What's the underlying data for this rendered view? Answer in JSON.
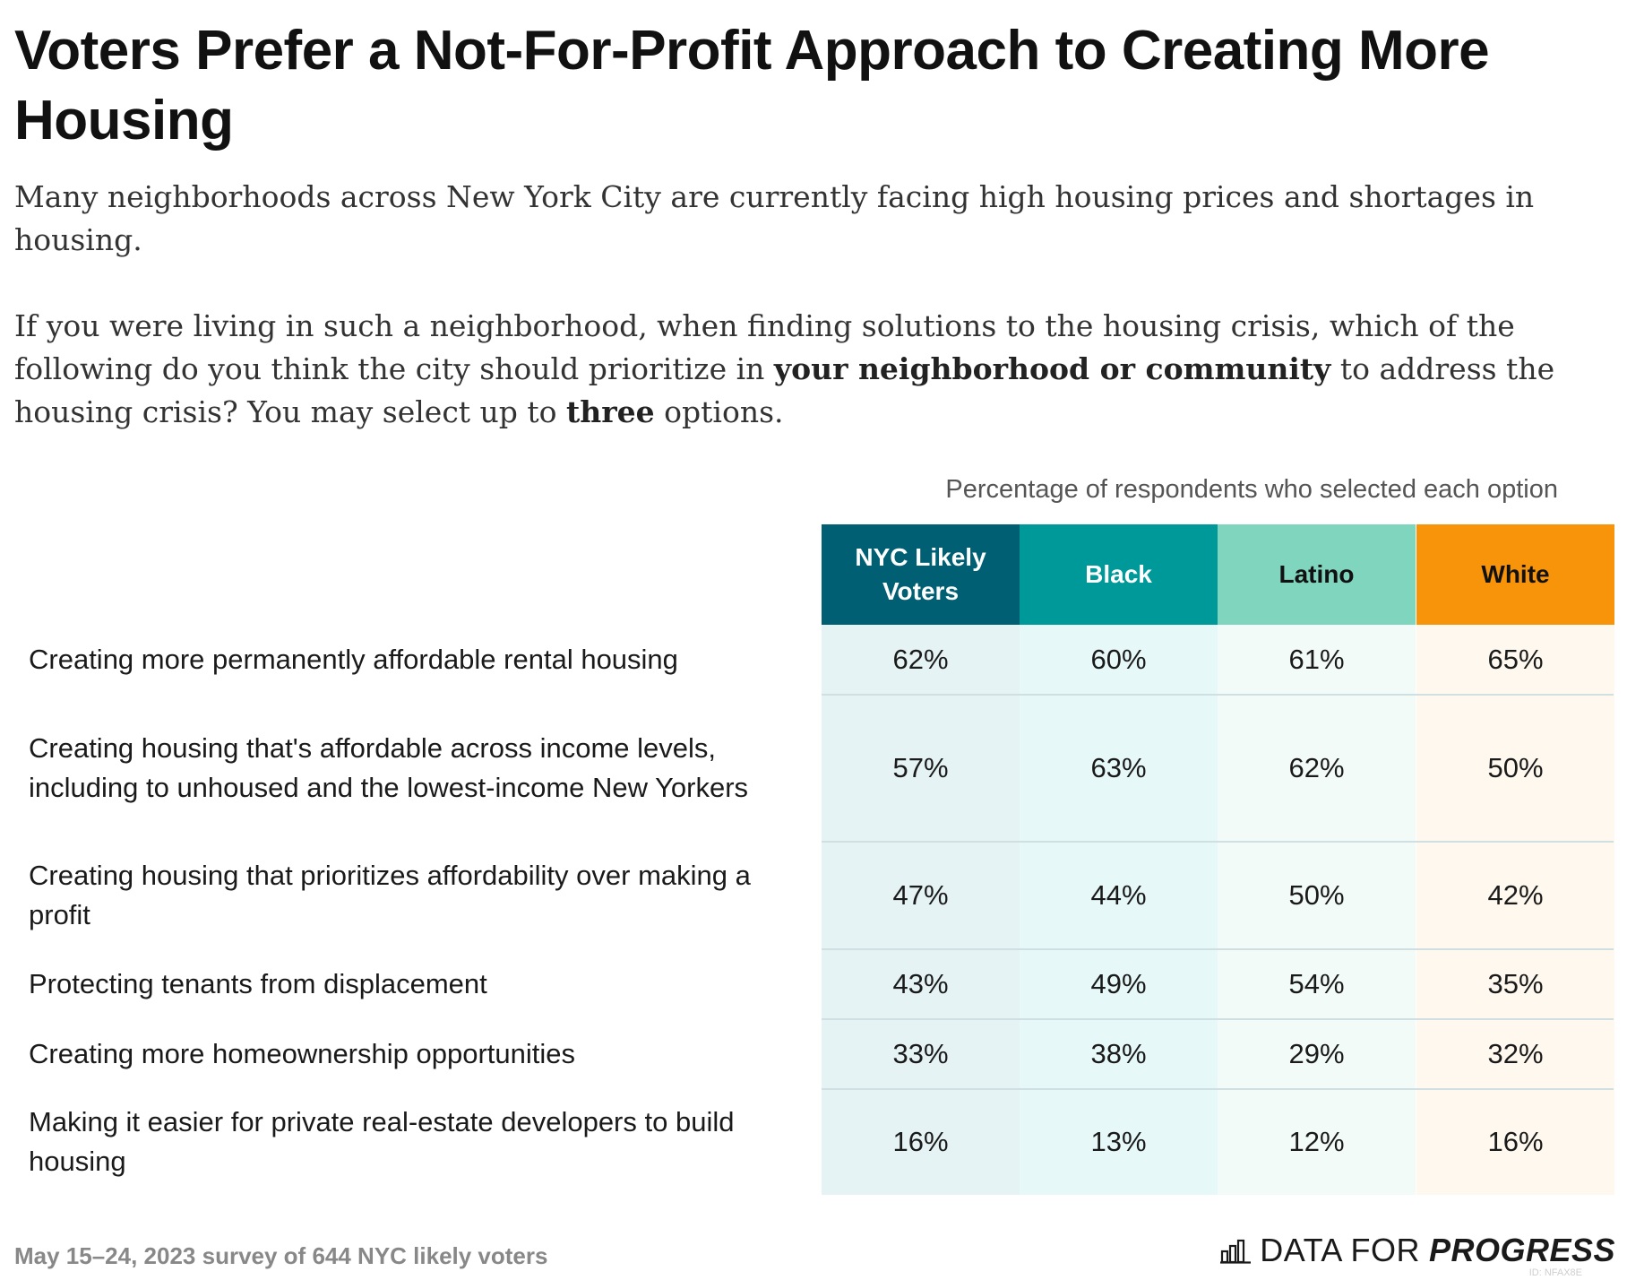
{
  "title": "Voters Prefer a Not-For-Profit Approach to Creating More Housing",
  "intro": "Many neighborhoods across New York City are currently facing high housing prices and shortages in housing.",
  "question": {
    "part1": "If you were living in such a neighborhood, when finding solutions to the housing crisis, which of the following do you think the city should prioritize in ",
    "bold1": "your neighborhood or community",
    "part2": " to address the housing crisis? You may select up to ",
    "bold2": "three",
    "part3": " options."
  },
  "table_caption": "Percentage of respondents who selected each option",
  "footer": {
    "source": "May 15–24, 2023 survey of 644 NYC likely voters",
    "brand_regular": "DATA FOR",
    "brand_bold": "PROGRESS",
    "chart_id": "ID: NFAX8E"
  },
  "colors": {
    "nyc_header": "#005f73",
    "black_header": "#009999",
    "latino_header": "#80d5be",
    "white_header": "#f7940a"
  },
  "chart_data": {
    "type": "table",
    "title": "Voters Prefer a Not-For-Profit Approach to Creating More Housing",
    "columns": [
      "NYC Likely Voters",
      "Black",
      "Latino",
      "White"
    ],
    "rows": [
      {
        "label": "Creating more permanently affordable rental housing",
        "values": [
          "62%",
          "60%",
          "61%",
          "65%"
        ]
      },
      {
        "label": "Creating housing that's affordable across income levels, including to unhoused and the lowest-income New Yorkers",
        "values": [
          "57%",
          "63%",
          "62%",
          "50%"
        ]
      },
      {
        "label": "Creating housing that prioritizes affordability over making a profit",
        "values": [
          "47%",
          "44%",
          "50%",
          "42%"
        ]
      },
      {
        "label": "Protecting tenants from displacement",
        "values": [
          "43%",
          "49%",
          "54%",
          "35%"
        ]
      },
      {
        "label": "Creating more homeownership opportunities",
        "values": [
          "33%",
          "38%",
          "29%",
          "32%"
        ]
      },
      {
        "label": "Making it easier for private real-estate developers to build housing",
        "values": [
          "16%",
          "13%",
          "12%",
          "16%"
        ]
      }
    ]
  }
}
